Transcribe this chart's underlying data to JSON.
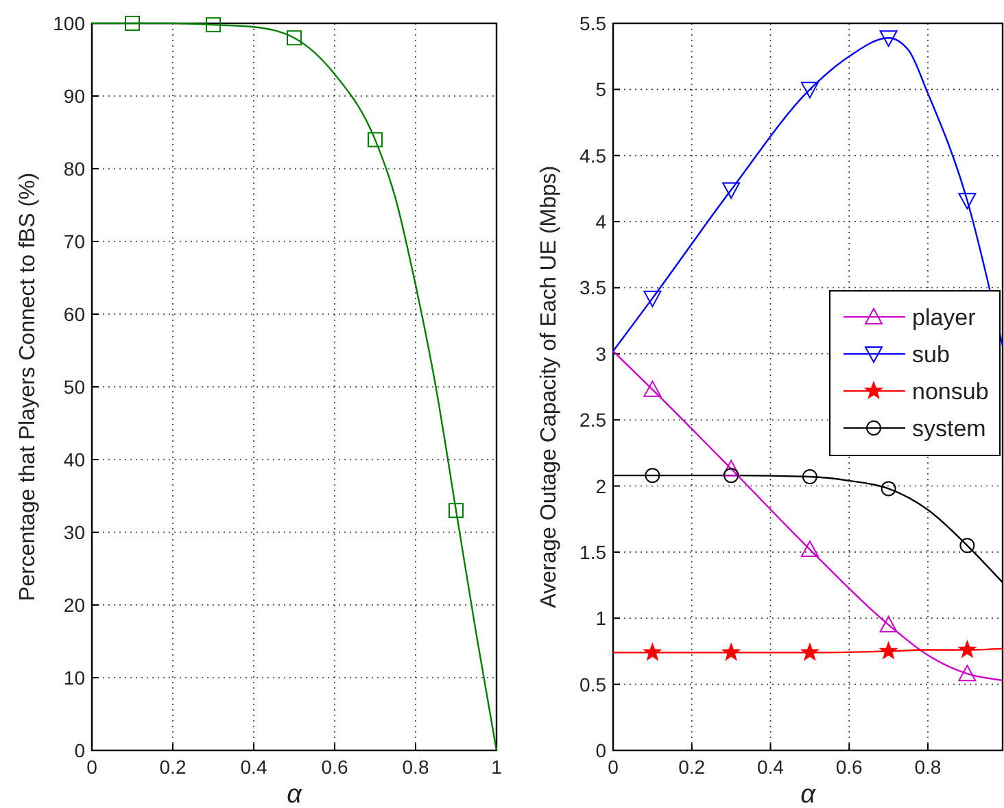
{
  "chart_data": [
    {
      "type": "line",
      "xlabel": "α",
      "ylabel": "Percentage that Players Connect to fBS (%)",
      "xlim": [
        0,
        1
      ],
      "ylim": [
        0,
        100
      ],
      "xticks": [
        0,
        0.2,
        0.4,
        0.6,
        0.8,
        1
      ],
      "yticks": [
        0,
        10,
        20,
        30,
        40,
        50,
        60,
        70,
        80,
        90,
        100
      ],
      "grid": true,
      "series": [
        {
          "color": "#008000",
          "marker": "none",
          "x": [
            0,
            0.1,
            0.2,
            0.3,
            0.4,
            0.5,
            0.6,
            0.7,
            0.75,
            0.8,
            0.85,
            0.9,
            0.95,
            1
          ],
          "values": [
            100,
            100,
            100,
            99.8,
            99.5,
            98,
            93,
            84,
            76,
            64,
            50,
            33,
            16,
            0
          ]
        },
        {
          "type": "scatter",
          "color": "#008000",
          "marker": "square",
          "x": [
            0.1,
            0.3,
            0.5,
            0.7,
            0.9
          ],
          "values": [
            100,
            99.8,
            98,
            84,
            33
          ]
        }
      ]
    },
    {
      "type": "line",
      "xlabel": "α",
      "ylabel": "Average Outage Capacity of Each UE (Mbps)",
      "xlim": [
        0,
        0.99
      ],
      "ylim": [
        0,
        5.5
      ],
      "xticks": [
        0,
        0.2,
        0.4,
        0.6,
        0.8
      ],
      "yticks": [
        0,
        0.5,
        1,
        1.5,
        2,
        2.5,
        3,
        3.5,
        4,
        4.5,
        5,
        5.5
      ],
      "grid": true,
      "legend": "right",
      "series": [
        {
          "color": "#cc00cc",
          "marker": "none",
          "x": [
            0,
            0.1,
            0.3,
            0.5,
            0.7,
            0.8,
            0.9,
            0.99
          ],
          "values": [
            3.02,
            2.73,
            2.13,
            1.52,
            0.95,
            0.72,
            0.58,
            0.53
          ]
        },
        {
          "color": "#0000ff",
          "marker": "none",
          "x": [
            0,
            0.1,
            0.3,
            0.5,
            0.6,
            0.7,
            0.75,
            0.8,
            0.9,
            0.99
          ],
          "values": [
            3.02,
            3.42,
            4.24,
            5,
            5.25,
            5.39,
            5.3,
            4.97,
            4.16,
            3.06
          ]
        },
        {
          "color": "#ff0000",
          "marker": "none",
          "x": [
            0,
            0.1,
            0.3,
            0.5,
            0.7,
            0.8,
            0.9,
            0.99
          ],
          "values": [
            0.74,
            0.74,
            0.74,
            0.74,
            0.75,
            0.76,
            0.76,
            0.77
          ]
        },
        {
          "color": "#000000",
          "marker": "none",
          "x": [
            0,
            0.1,
            0.3,
            0.5,
            0.6,
            0.7,
            0.8,
            0.9,
            0.99
          ],
          "values": [
            2.08,
            2.08,
            2.08,
            2.07,
            2.04,
            1.98,
            1.82,
            1.55,
            1.27
          ]
        },
        {
          "type": "scatter",
          "name": "player",
          "color": "#cc00cc",
          "marker": "triangle",
          "x": [
            0.1,
            0.3,
            0.5,
            0.7,
            0.9
          ],
          "values": [
            2.73,
            2.13,
            1.52,
            0.95,
            0.58
          ]
        },
        {
          "type": "scatter",
          "name": "sub",
          "color": "#0000ff",
          "marker": "triangle-down",
          "x": [
            0.1,
            0.3,
            0.5,
            0.7,
            0.9
          ],
          "values": [
            3.42,
            4.24,
            5,
            5.39,
            4.16
          ]
        },
        {
          "type": "scatter",
          "name": "nonsub",
          "color": "#ff0000",
          "marker": "star",
          "x": [
            0.1,
            0.3,
            0.5,
            0.7,
            0.9
          ],
          "values": [
            0.74,
            0.74,
            0.74,
            0.75,
            0.76
          ]
        },
        {
          "type": "scatter",
          "name": "system",
          "color": "#000000",
          "marker": "circle",
          "x": [
            0.1,
            0.3,
            0.5,
            0.7,
            0.9
          ],
          "values": [
            2.08,
            2.08,
            2.07,
            1.98,
            1.55
          ]
        }
      ]
    }
  ]
}
